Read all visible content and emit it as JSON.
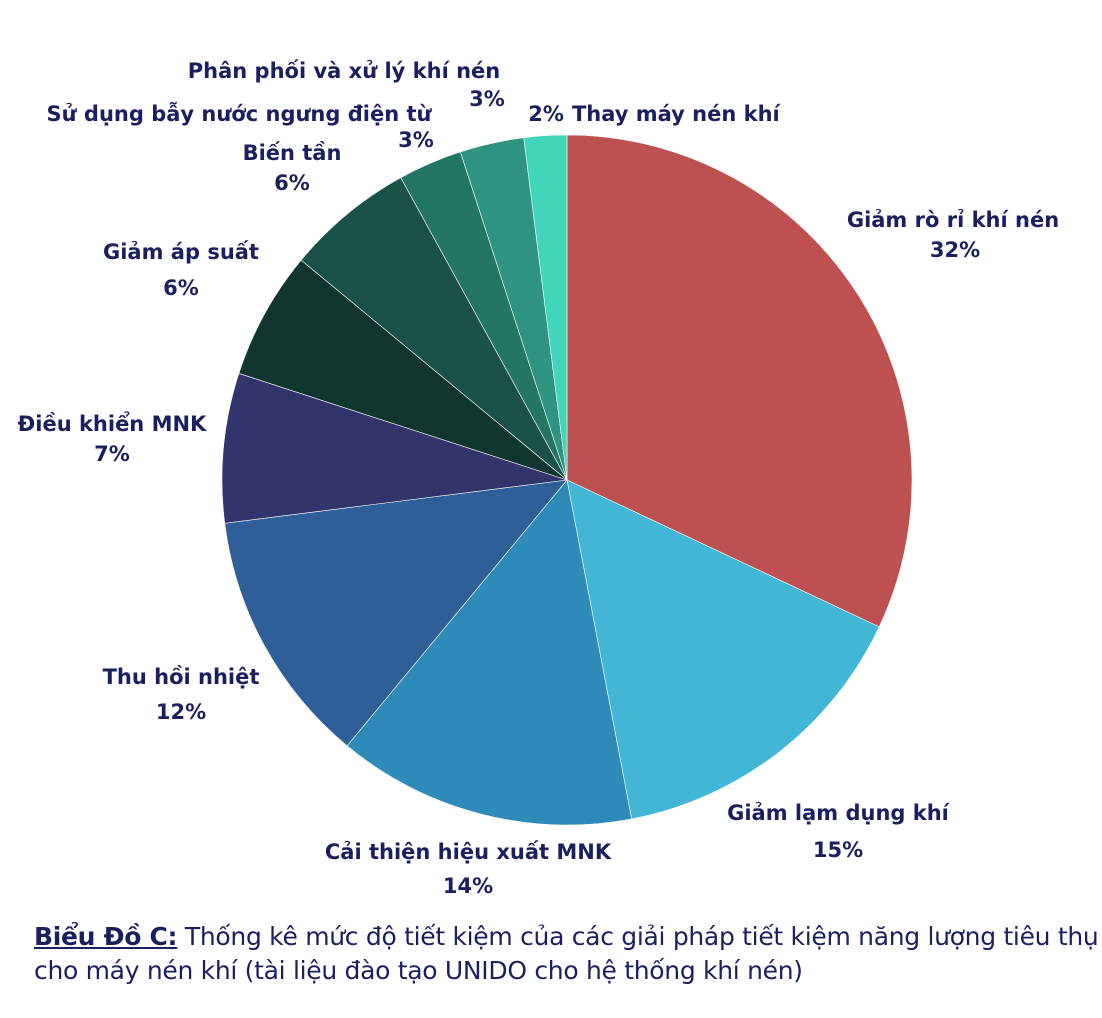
{
  "chart_data": {
    "type": "pie",
    "start": "top, clockwise",
    "slices": [
      {
        "label": "Giảm rò rỉ khí nén",
        "value": 32,
        "pct": "32%",
        "color": "#BD5050"
      },
      {
        "label": "Giảm lạm dụng khí",
        "value": 15,
        "pct": "15%",
        "color": "#42B6D5"
      },
      {
        "label": "Cải thiện hiệu xuất MNK",
        "value": 14,
        "pct": "14%",
        "color": "#2E8BB9"
      },
      {
        "label": "Thu hồi nhiệt",
        "value": 12,
        "pct": "12%",
        "color": "#2F5F98"
      },
      {
        "label": "Điều khiển MNK",
        "value": 7,
        "pct": "7%",
        "color": "#31356B"
      },
      {
        "label": "Giảm áp suất",
        "value": 6,
        "pct": "6%",
        "color": "#10362F"
      },
      {
        "label": "Biến tần",
        "value": 6,
        "pct": "6%",
        "color": "#1A5249"
      },
      {
        "label": "Sử dụng bẫy nước ngưng điện từ",
        "value": 3,
        "pct": "3%",
        "color": "#237564"
      },
      {
        "label": "Phân phối và xử lý khí nén",
        "value": 3,
        "pct": "3%",
        "color": "#2E9380"
      },
      {
        "label": "Thay máy nén khí",
        "value": 2,
        "pct": "2%",
        "color": "#41D6BA"
      }
    ]
  },
  "caption": {
    "prefix": "Biểu Đồ C:",
    "text": " Thống kê mức độ tiết kiệm của các giải pháp tiết kiệm năng lượng tiêu thụ cho máy nén khí (tài liệu đào tạo UNIDO cho hệ thống khí nén)"
  }
}
